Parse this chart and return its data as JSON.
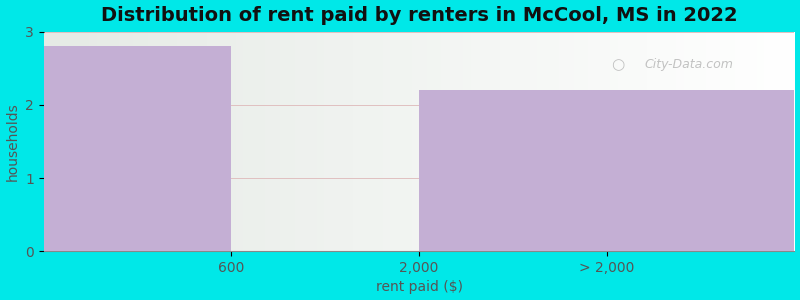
{
  "title": "Distribution of rent paid by renters in McCool, MS in 2022",
  "xlabel": "rent paid ($)",
  "ylabel": "households",
  "xtick_labels": [
    "600",
    "2,000",
    "> 2,000"
  ],
  "bar1_value": 2.8,
  "bar2_value": 2.2,
  "bar_color": "#c4afd4",
  "background_color": "#00e8e8",
  "ylim": [
    0,
    3
  ],
  "yticks": [
    0,
    1,
    2,
    3
  ],
  "title_fontsize": 14,
  "axis_label_fontsize": 10,
  "tick_fontsize": 10,
  "watermark_text": "City-Data.com"
}
